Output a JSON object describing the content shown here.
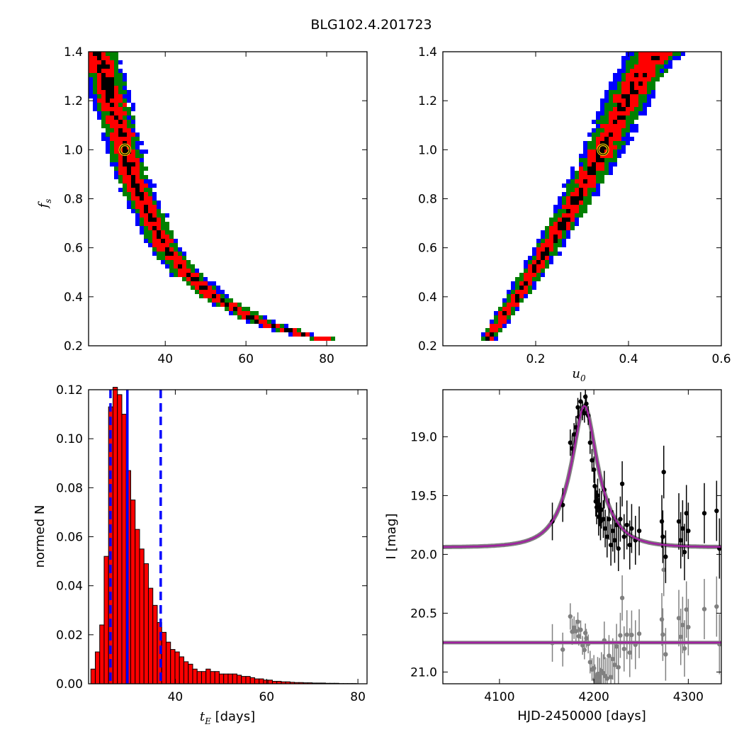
{
  "figure_title": "BLG102.4.201723",
  "chart_data": [
    {
      "id": "fs_vs_tE",
      "type": "heatmap",
      "xlabel": "",
      "ylabel_main": "f",
      "ylabel_sub": "s",
      "xlim": [
        21,
        90
      ],
      "ylim": [
        0.2,
        1.4
      ],
      "xticks": [
        40,
        60,
        80
      ],
      "yticks": [
        0.2,
        0.4,
        0.6,
        0.8,
        1.0,
        1.2,
        1.4
      ],
      "colors": {
        "outer": "#0000ff",
        "mid": "#008000",
        "inner": "#ff0000",
        "core": "#000000",
        "marker": "#ffd700"
      },
      "ridge": [
        [
          23.5,
          1.4
        ],
        [
          25,
          1.3
        ],
        [
          26.5,
          1.2
        ],
        [
          28.5,
          1.1
        ],
        [
          30,
          1.0
        ],
        [
          31.5,
          0.9
        ],
        [
          34,
          0.8
        ],
        [
          37,
          0.7
        ],
        [
          40,
          0.6
        ],
        [
          45,
          0.5
        ],
        [
          52,
          0.4
        ],
        [
          63,
          0.3
        ],
        [
          75,
          0.24
        ],
        [
          82,
          0.22
        ]
      ],
      "best_fit": [
        30,
        1.0
      ]
    },
    {
      "id": "fs_vs_u0",
      "type": "heatmap",
      "xlabel_main": "u",
      "xlabel_sub": "0",
      "ylabel": "",
      "xlim": [
        0.0,
        0.6
      ],
      "ylim": [
        0.2,
        1.4
      ],
      "xticks": [
        0.2,
        0.4,
        0.6
      ],
      "yticks": [
        0.2,
        0.4,
        0.6,
        0.8,
        1.0,
        1.2,
        1.4
      ],
      "colors": {
        "outer": "#0000ff",
        "mid": "#008000",
        "inner": "#ff0000",
        "core": "#000000",
        "marker": "#ffd700"
      },
      "ridge": [
        [
          0.095,
          0.22
        ],
        [
          0.13,
          0.32
        ],
        [
          0.17,
          0.43
        ],
        [
          0.21,
          0.55
        ],
        [
          0.25,
          0.67
        ],
        [
          0.29,
          0.8
        ],
        [
          0.32,
          0.91
        ],
        [
          0.345,
          1.0
        ],
        [
          0.37,
          1.1
        ],
        [
          0.4,
          1.22
        ],
        [
          0.43,
          1.32
        ],
        [
          0.46,
          1.4
        ]
      ],
      "best_fit": [
        0.345,
        1.0
      ]
    },
    {
      "id": "tE_histogram",
      "type": "bar",
      "xlabel_main": "t",
      "xlabel_sub": "E",
      "xlabel_rest": " [days]",
      "ylabel": "normed N",
      "xlim": [
        21,
        82
      ],
      "ylim": [
        0.0,
        0.12
      ],
      "xticks": [
        40,
        60,
        80
      ],
      "yticks": [
        0.0,
        0.02,
        0.04,
        0.06,
        0.08,
        0.1,
        0.12
      ],
      "ytick_labels": [
        "0.00",
        "0.02",
        "0.04",
        "0.06",
        "0.08",
        "0.10",
        "0.12"
      ],
      "bin_start": 21.5,
      "bin_width": 0.97,
      "values": [
        0.006,
        0.013,
        0.024,
        0.052,
        0.113,
        0.121,
        0.118,
        0.11,
        0.087,
        0.075,
        0.063,
        0.055,
        0.049,
        0.039,
        0.032,
        0.025,
        0.021,
        0.017,
        0.014,
        0.013,
        0.011,
        0.009,
        0.008,
        0.006,
        0.005,
        0.005,
        0.006,
        0.005,
        0.005,
        0.004,
        0.004,
        0.004,
        0.004,
        0.0035,
        0.003,
        0.003,
        0.0025,
        0.002,
        0.002,
        0.0015,
        0.0015,
        0.001,
        0.001,
        0.0008,
        0.0008,
        0.0006,
        0.0005,
        0.0005,
        0.0004,
        0.0004,
        0.0003,
        0.0003,
        0.0003,
        0.0002,
        0.0002,
        0.0002,
        0.0001,
        0.0001,
        0.0001,
        0.0001
      ],
      "bar_color": "#ff0000",
      "median": 29.5,
      "lower": 25.8,
      "upper": 36.8,
      "line_color": "#0000ff"
    },
    {
      "id": "light_curve",
      "type": "scatter",
      "xlabel": "HJD-2450000 [days]",
      "ylabel": "I [mag]",
      "xlim": [
        4040,
        4335
      ],
      "ylim": [
        21.1,
        18.6
      ],
      "xticks": [
        4100,
        4200,
        4300
      ],
      "yticks": [
        19.0,
        19.5,
        20.0,
        20.5,
        21.0
      ],
      "ytick_labels": [
        "19.0",
        "19.5",
        "20.0",
        "20.5",
        "21.0"
      ],
      "model": {
        "t0": 4190,
        "tE": 29.5,
        "u0": 0.345,
        "baseline": 19.94,
        "fs": 1.0,
        "color": "#a020a0"
      },
      "residual_offset": 20.75,
      "data_color": "#000000",
      "residual_color": "#808080",
      "points": [
        {
          "t": 4156,
          "mag": 19.72,
          "err": 0.1
        },
        {
          "t": 4167,
          "mag": 19.58,
          "err": 0.09
        },
        {
          "t": 4175,
          "mag": 19.05,
          "err": 0.07
        },
        {
          "t": 4177,
          "mag": 19.1,
          "err": 0.07
        },
        {
          "t": 4179,
          "mag": 18.98,
          "err": 0.06
        },
        {
          "t": 4181,
          "mag": 18.92,
          "err": 0.06
        },
        {
          "t": 4183,
          "mag": 18.75,
          "err": 0.05
        },
        {
          "t": 4184,
          "mag": 18.83,
          "err": 0.05
        },
        {
          "t": 4186,
          "mag": 18.7,
          "err": 0.05
        },
        {
          "t": 4188,
          "mag": 18.78,
          "err": 0.05
        },
        {
          "t": 4190,
          "mag": 18.8,
          "err": 0.05
        },
        {
          "t": 4191,
          "mag": 18.66,
          "err": 0.05
        },
        {
          "t": 4192,
          "mag": 18.72,
          "err": 0.05
        },
        {
          "t": 4194,
          "mag": 18.82,
          "err": 0.05
        },
        {
          "t": 4196,
          "mag": 19.05,
          "err": 0.06
        },
        {
          "t": 4198,
          "mag": 19.2,
          "err": 0.06
        },
        {
          "t": 4200,
          "mag": 19.28,
          "err": 0.07
        },
        {
          "t": 4201,
          "mag": 19.42,
          "err": 0.08
        },
        {
          "t": 4202,
          "mag": 19.55,
          "err": 0.08
        },
        {
          "t": 4203,
          "mag": 19.6,
          "err": 0.09
        },
        {
          "t": 4204,
          "mag": 19.5,
          "err": 0.09
        },
        {
          "t": 4205,
          "mag": 19.68,
          "err": 0.1
        },
        {
          "t": 4206,
          "mag": 19.6,
          "err": 0.1
        },
        {
          "t": 4207,
          "mag": 19.72,
          "err": 0.1
        },
        {
          "t": 4208,
          "mag": 19.62,
          "err": 0.1
        },
        {
          "t": 4210,
          "mag": 19.7,
          "err": 0.1
        },
        {
          "t": 4211,
          "mag": 19.45,
          "err": 0.1
        },
        {
          "t": 4212,
          "mag": 19.78,
          "err": 0.1
        },
        {
          "t": 4214,
          "mag": 19.85,
          "err": 0.11
        },
        {
          "t": 4216,
          "mag": 19.7,
          "err": 0.11
        },
        {
          "t": 4218,
          "mag": 19.92,
          "err": 0.11
        },
        {
          "t": 4220,
          "mag": 19.8,
          "err": 0.11
        },
        {
          "t": 4222,
          "mag": 19.88,
          "err": 0.12
        },
        {
          "t": 4224,
          "mag": 19.75,
          "err": 0.12
        },
        {
          "t": 4226,
          "mag": 19.95,
          "err": 0.12
        },
        {
          "t": 4228,
          "mag": 19.7,
          "err": 0.12
        },
        {
          "t": 4230,
          "mag": 19.4,
          "err": 0.12
        },
        {
          "t": 4232,
          "mag": 19.85,
          "err": 0.12
        },
        {
          "t": 4235,
          "mag": 19.75,
          "err": 0.13
        },
        {
          "t": 4238,
          "mag": 19.92,
          "err": 0.13
        },
        {
          "t": 4240,
          "mag": 19.78,
          "err": 0.13
        },
        {
          "t": 4244,
          "mag": 19.88,
          "err": 0.13
        },
        {
          "t": 4248,
          "mag": 19.8,
          "err": 0.13
        },
        {
          "t": 4272,
          "mag": 19.72,
          "err": 0.14
        },
        {
          "t": 4273,
          "mag": 19.85,
          "err": 0.14
        },
        {
          "t": 4274,
          "mag": 19.3,
          "err": 0.14
        },
        {
          "t": 4276,
          "mag": 20.02,
          "err": 0.14
        },
        {
          "t": 4290,
          "mag": 19.72,
          "err": 0.15
        },
        {
          "t": 4292,
          "mag": 19.88,
          "err": 0.15
        },
        {
          "t": 4294,
          "mag": 19.78,
          "err": 0.15
        },
        {
          "t": 4296,
          "mag": 19.98,
          "err": 0.15
        },
        {
          "t": 4298,
          "mag": 19.65,
          "err": 0.15
        },
        {
          "t": 4300,
          "mag": 19.8,
          "err": 0.15
        },
        {
          "t": 4317,
          "mag": 19.65,
          "err": 0.16
        },
        {
          "t": 4330,
          "mag": 19.63,
          "err": 0.16
        },
        {
          "t": 4333,
          "mag": 19.95,
          "err": 0.16
        }
      ]
    }
  ]
}
